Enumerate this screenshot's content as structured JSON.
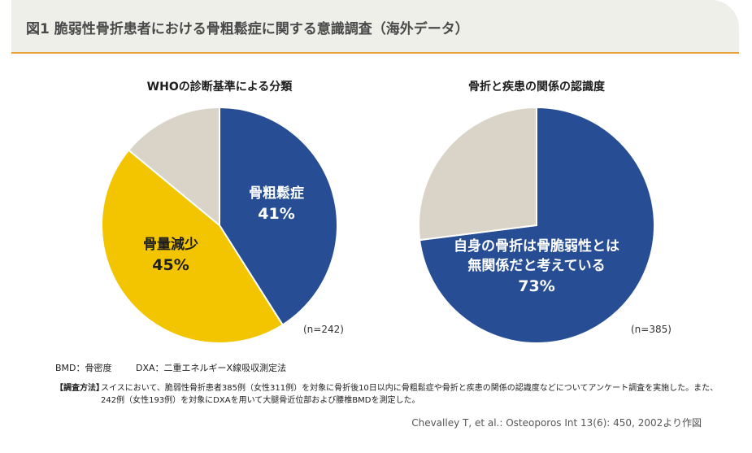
{
  "header": {
    "title": "図1 脆弱性骨折患者における骨粗鬆症に関する意識調査（海外データ）"
  },
  "colors": {
    "blue": "#274e94",
    "yellow": "#f2c500",
    "gray": "#d9d4c7",
    "accent": "#e8a33c"
  },
  "chart_data": [
    {
      "type": "pie",
      "title": "WHOの診断基準による分類",
      "n_label": "(n=242)",
      "slices": [
        {
          "label": "骨粗鬆症",
          "value": 41,
          "value_label": "41%",
          "color": "#274e94"
        },
        {
          "label": "骨量減少",
          "value": 45,
          "value_label": "45%",
          "color": "#f2c500"
        },
        {
          "label": "",
          "value": 14,
          "value_label": "",
          "color": "#d9d4c7"
        }
      ]
    },
    {
      "type": "pie",
      "title": "骨折と疾患の関係の認識度",
      "n_label": "(n=385)",
      "slices": [
        {
          "label_lines": [
            "自身の骨折は骨脆弱性とは",
            "無関係だと考えている"
          ],
          "value": 73,
          "value_label": "73%",
          "color": "#274e94"
        },
        {
          "label_lines": [],
          "value": 27,
          "value_label": "",
          "color": "#d9d4c7"
        }
      ]
    }
  ],
  "footnote": {
    "bmd": "BMD：骨密度",
    "dxa": "DXA：二重エネルギーX線吸収測定法"
  },
  "method": {
    "label": "【調査方法】",
    "text": "スイスにおいて、脆弱性骨折患者385例（女性311例）を対象に骨折後10日以内に骨粗鬆症や骨折と疾患の関係の認識度などについてアンケート調査を実施した。また、242例（女性193例）を対象にDXAを用いて大腿骨近位部および腰椎BMDを測定した。"
  },
  "citation": "Chevalley T, et al.: Osteoporos Int 13(6): 450, 2002より作図"
}
